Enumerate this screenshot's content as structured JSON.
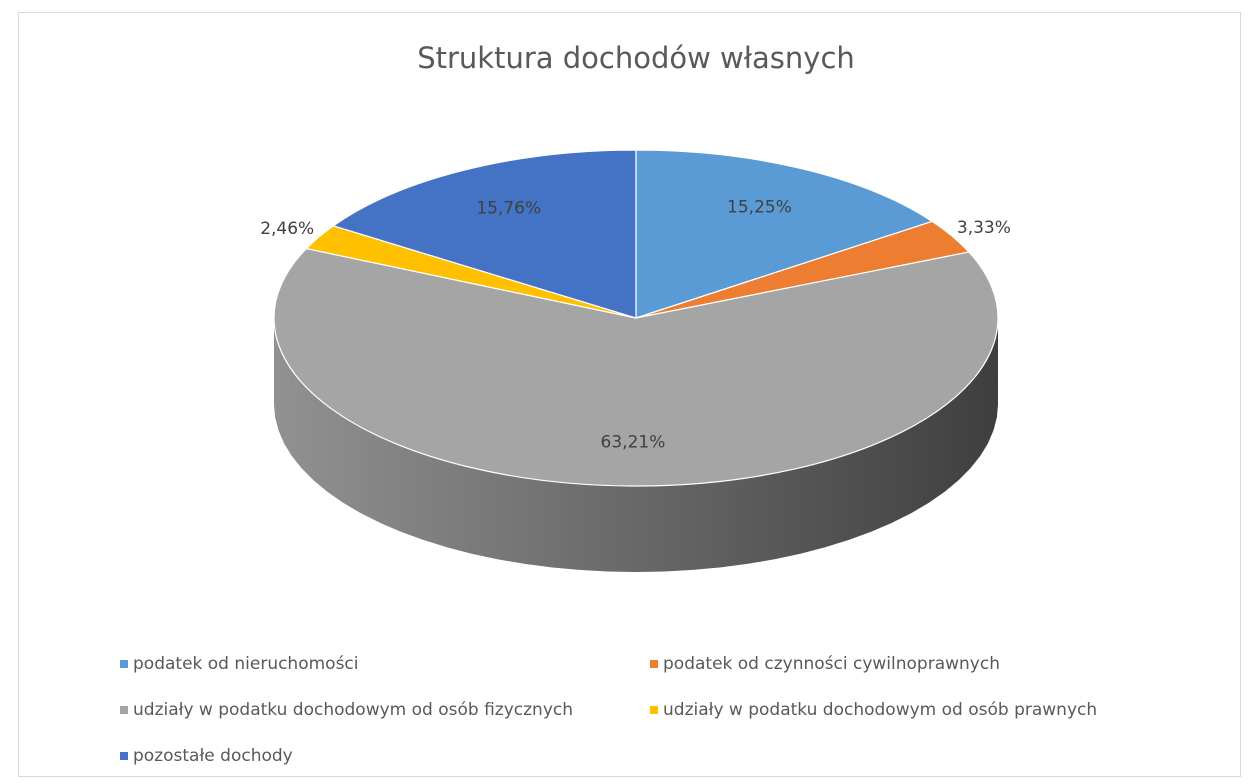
{
  "chart_data": {
    "type": "pie3d",
    "title": "Struktura dochodów własnych",
    "categories": [
      "podatek od nieruchomości",
      "podatek od czynności cywilnoprawnych",
      "udziały w podatku dochodowym od osób fizycznych",
      "udziały w podatku dochodowym od osób prawnych",
      "pozostałe dochody"
    ],
    "values": [
      15.25,
      3.33,
      63.21,
      2.46,
      15.76
    ],
    "value_labels": [
      "15,25%",
      "3,33%",
      "63,21%",
      "2,46%",
      "15,76%"
    ],
    "colors": [
      "#5b9bd5",
      "#ed7d31",
      "#a5a5a5",
      "#ffc000",
      "#4472c4"
    ],
    "legend": "bottom"
  }
}
